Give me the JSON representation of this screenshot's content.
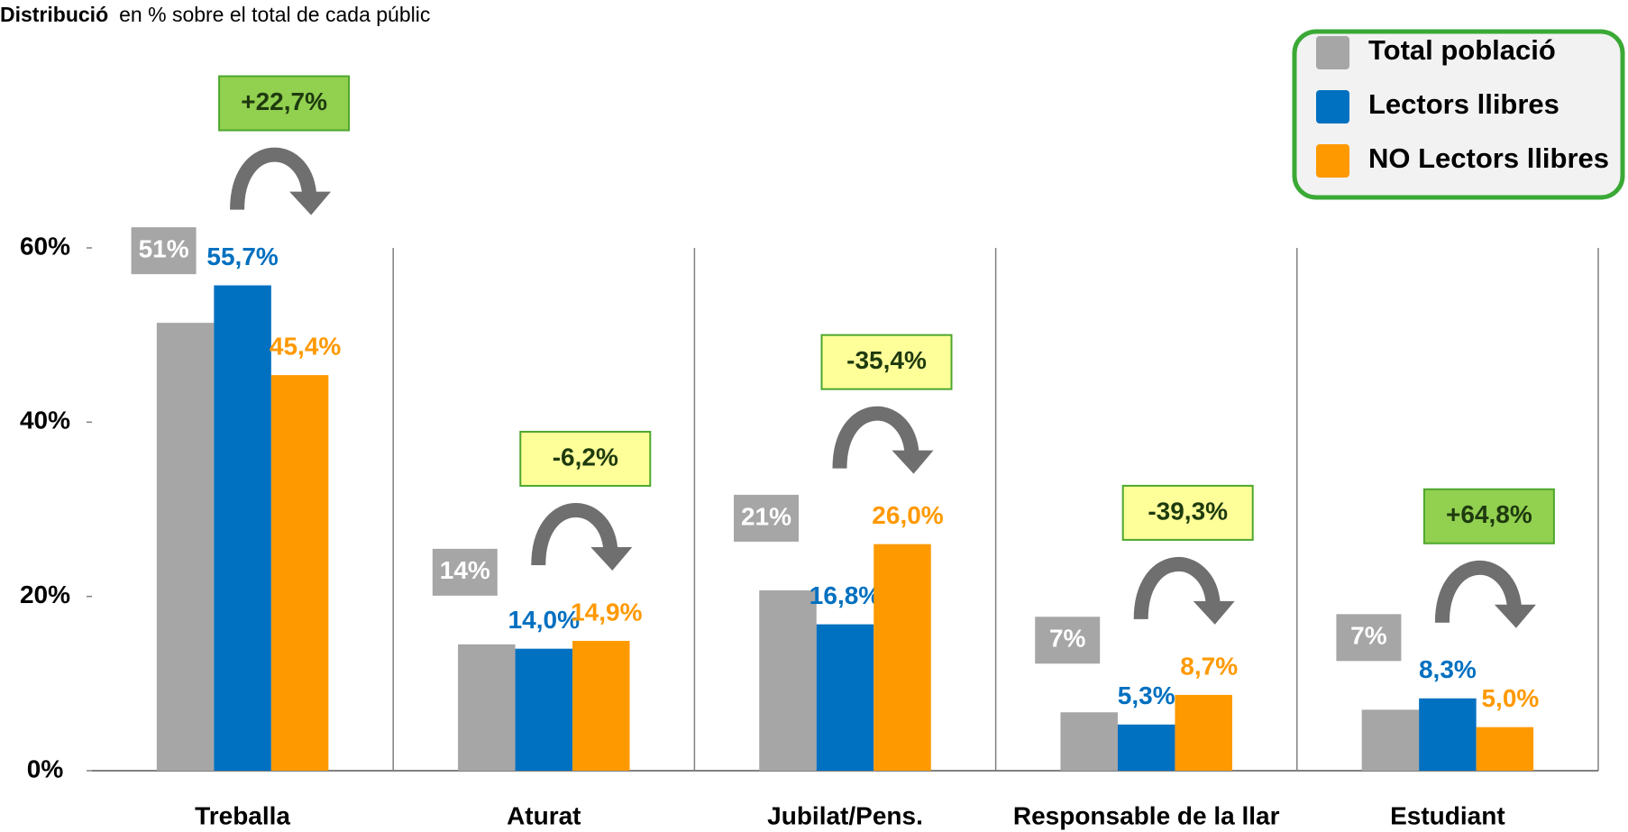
{
  "chart_data": {
    "type": "bar",
    "title": "Distribució",
    "subtitle": "en % sobre el total de cada públic",
    "categories": [
      "Treballa",
      "Aturat",
      "Jubilat/Pens.",
      "Responsable de la llar",
      "Estudiant"
    ],
    "series": [
      {
        "name": "Total població",
        "color": "#a6a6a6",
        "values": [
          51.4,
          14.5,
          20.7,
          6.7,
          7.0
        ],
        "value_labels": [
          "51%",
          "14%",
          "21%",
          "7%",
          "7%"
        ]
      },
      {
        "name": "Lectors llibres",
        "color": "#0070c0",
        "values": [
          55.7,
          14.0,
          16.8,
          5.3,
          8.3
        ],
        "value_labels": [
          "55,7%",
          "14,0%",
          "16,8%",
          "5,3%",
          "8,3%"
        ]
      },
      {
        "name": "NO Lectors llibres",
        "color": "#ff9900",
        "values": [
          45.4,
          14.9,
          26.0,
          8.7,
          5.0
        ],
        "value_labels": [
          "45,4%",
          "14,9%",
          "26,0%",
          "8,7%",
          "5,0%"
        ]
      }
    ],
    "annotations": [
      {
        "text": "+22,7%",
        "color": "#92d050"
      },
      {
        "text": "-6,2%",
        "color": "#ffff99"
      },
      {
        "text": "-35,4%",
        "color": "#ffff99"
      },
      {
        "text": "-39,3%",
        "color": "#ffff99"
      },
      {
        "text": "+64,8%",
        "color": "#92d050"
      }
    ],
    "ylim": [
      0,
      60
    ],
    "yticks": [
      {
        "value": 0,
        "label": "0%"
      },
      {
        "value": 20,
        "label": "20%"
      },
      {
        "value": 40,
        "label": "40%"
      },
      {
        "value": 60,
        "label": "60%"
      }
    ],
    "legend": "top-right"
  }
}
